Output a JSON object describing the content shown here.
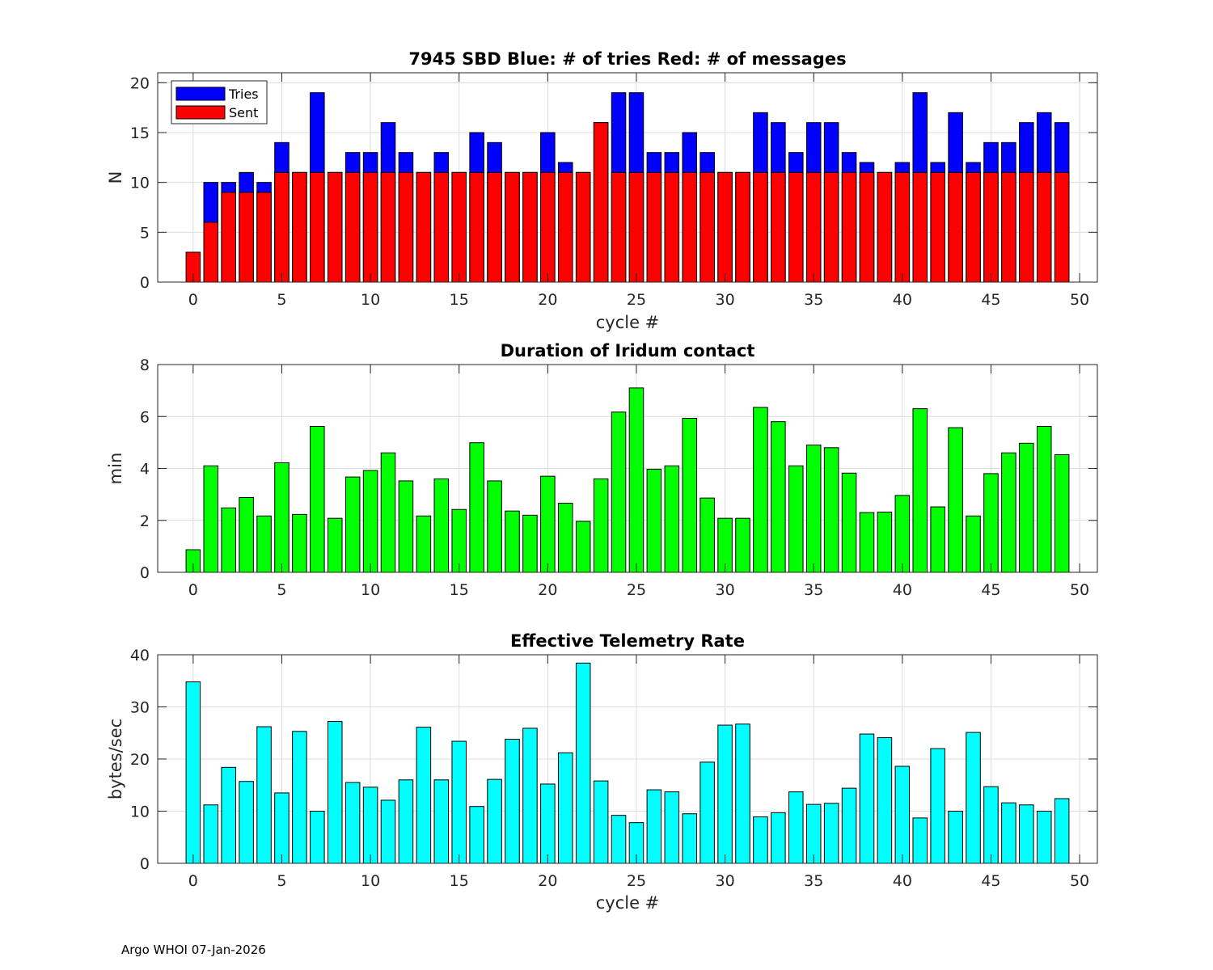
{
  "footer": "Argo WHOI 07-Jan-2026",
  "chart_data": [
    {
      "type": "bar",
      "title": "7945 SBD  Blue: # of tries   Red: # of messages",
      "xlabel": "cycle #",
      "ylabel": "N",
      "xlim": [
        -2,
        51
      ],
      "ylim": [
        0,
        21
      ],
      "xticks": [
        0,
        5,
        10,
        15,
        20,
        25,
        30,
        35,
        40,
        45,
        50
      ],
      "yticks": [
        0,
        5,
        10,
        15,
        20
      ],
      "grid": true,
      "legend": {
        "placement": "top-left",
        "entries": [
          "Tries",
          "Sent"
        ]
      },
      "x": [
        0,
        1,
        2,
        3,
        4,
        5,
        6,
        7,
        8,
        9,
        10,
        11,
        12,
        13,
        14,
        15,
        16,
        17,
        18,
        19,
        20,
        21,
        22,
        23,
        24,
        25,
        26,
        27,
        28,
        29,
        30,
        31,
        32,
        33,
        34,
        35,
        36,
        37,
        38,
        39,
        40,
        41,
        42,
        43,
        44,
        45,
        46,
        47,
        48,
        49
      ],
      "series": [
        {
          "name": "Tries",
          "color": "#0000ff",
          "values": [
            0,
            10,
            10,
            11,
            10,
            14,
            11,
            19,
            11,
            13,
            13,
            16,
            13,
            11,
            13,
            11,
            15,
            14,
            11,
            11,
            15,
            12,
            11,
            16,
            19,
            19,
            13,
            13,
            15,
            13,
            11,
            11,
            17,
            16,
            13,
            16,
            16,
            13,
            12,
            11,
            12,
            19,
            12,
            17,
            12,
            14,
            14,
            16,
            17,
            16
          ]
        },
        {
          "name": "Sent",
          "color": "#ff0000",
          "values": [
            3,
            6,
            9,
            9,
            9,
            11,
            11,
            11,
            11,
            11,
            11,
            11,
            11,
            11,
            11,
            11,
            11,
            11,
            11,
            11,
            11,
            11,
            11,
            16,
            11,
            11,
            11,
            11,
            11,
            11,
            11,
            11,
            11,
            11,
            11,
            11,
            11,
            11,
            11,
            11,
            11,
            11,
            11,
            11,
            11,
            11,
            11,
            11,
            11,
            11
          ]
        }
      ]
    },
    {
      "type": "bar",
      "title": "Duration of Iridum contact",
      "xlabel": "",
      "ylabel": "min",
      "xlim": [
        -2,
        51
      ],
      "ylim": [
        0,
        8
      ],
      "xticks": [
        0,
        5,
        10,
        15,
        20,
        25,
        30,
        35,
        40,
        45,
        50
      ],
      "yticks": [
        0,
        2,
        4,
        6,
        8
      ],
      "grid": true,
      "x": [
        -1,
        0,
        1,
        2,
        3,
        4,
        5,
        6,
        7,
        8,
        9,
        10,
        11,
        12,
        13,
        14,
        15,
        16,
        17,
        18,
        19,
        20,
        21,
        22,
        23,
        24,
        25,
        26,
        27,
        28,
        29,
        30,
        31,
        32,
        33,
        34,
        35,
        36,
        37,
        38,
        39,
        40,
        41,
        42,
        43,
        44,
        45,
        46,
        47,
        48,
        49
      ],
      "series": [
        {
          "name": "Duration",
          "color": "#00ff00",
          "values": [
            0,
            0.87,
            4.1,
            2.48,
            2.88,
            2.17,
            4.22,
            2.23,
            5.62,
            2.08,
            3.67,
            3.92,
            4.6,
            3.52,
            2.17,
            3.6,
            2.42,
            4.99,
            3.52,
            2.36,
            2.2,
            3.7,
            2.66,
            1.96,
            3.6,
            6.17,
            7.1,
            3.97,
            4.1,
            5.93,
            2.86,
            2.08,
            2.08,
            6.35,
            5.8,
            4.1,
            4.9,
            4.8,
            3.82,
            2.3,
            2.32,
            2.96,
            6.3,
            2.52,
            5.57,
            2.17,
            3.8,
            4.6,
            4.97,
            5.62,
            4.53
          ]
        }
      ]
    },
    {
      "type": "bar",
      "title": "Effective Telemetry Rate",
      "xlabel": "cycle #",
      "ylabel": "bytes/sec",
      "xlim": [
        -2,
        51
      ],
      "ylim": [
        0,
        40
      ],
      "xticks": [
        0,
        5,
        10,
        15,
        20,
        25,
        30,
        35,
        40,
        45,
        50
      ],
      "yticks": [
        0,
        10,
        20,
        30,
        40
      ],
      "grid": true,
      "x": [
        0,
        1,
        2,
        3,
        4,
        5,
        6,
        7,
        8,
        9,
        10,
        11,
        12,
        13,
        14,
        15,
        16,
        17,
        18,
        19,
        20,
        21,
        22,
        23,
        24,
        25,
        26,
        27,
        28,
        29,
        30,
        31,
        32,
        33,
        34,
        35,
        36,
        37,
        38,
        39,
        40,
        41,
        42,
        43,
        44,
        45,
        46,
        47,
        48,
        49
      ],
      "series": [
        {
          "name": "Rate",
          "color": "#00ffff",
          "values": [
            34.8,
            11.2,
            18.4,
            15.7,
            26.2,
            13.5,
            25.3,
            10,
            27.2,
            15.5,
            14.6,
            12.1,
            16,
            26.1,
            16,
            23.4,
            10.9,
            16.1,
            23.8,
            25.9,
            15.2,
            21.2,
            38.4,
            15.8,
            9.2,
            7.8,
            14.1,
            13.7,
            9.5,
            19.4,
            26.5,
            26.7,
            8.9,
            9.7,
            13.7,
            11.3,
            11.5,
            14.4,
            24.8,
            24.1,
            18.6,
            8.7,
            22,
            10,
            25.1,
            14.7,
            11.6,
            11.2,
            10,
            12.4
          ]
        }
      ]
    }
  ]
}
